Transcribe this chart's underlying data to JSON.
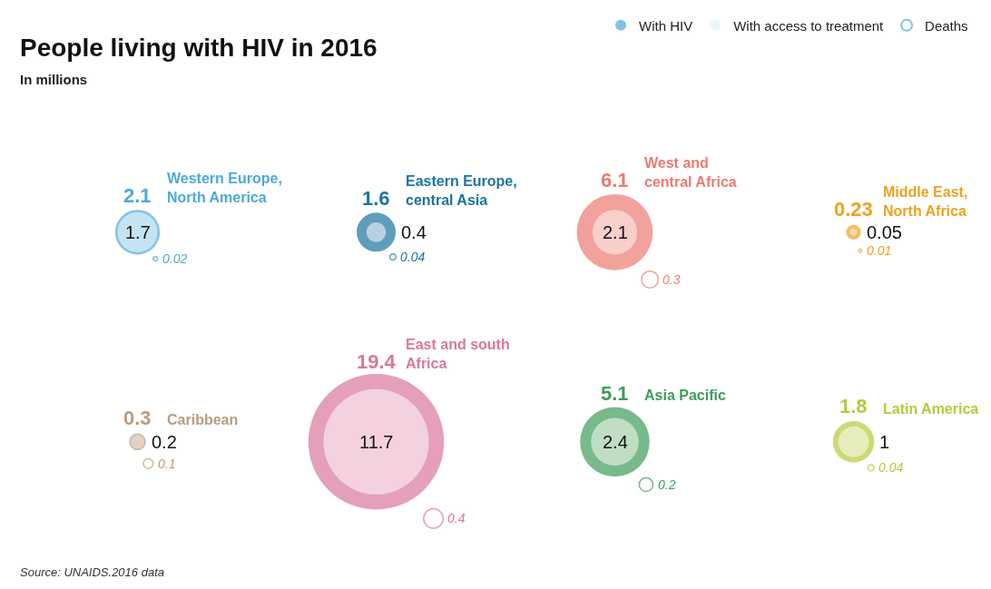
{
  "chart_data": {
    "type": "other",
    "title": "People living with HIV in 2016",
    "subtitle": "In millions",
    "categories": [
      "Western Europe, North America",
      "Eastern Europe, central Asia",
      "West and central Africa",
      "Middle East, North Africa",
      "Caribbean",
      "East and south Africa",
      "Asia Pacific",
      "Latin America"
    ],
    "series": [
      {
        "name": "With HIV",
        "colors": [
          "#4aabd6",
          "#1a74a0",
          "#ec7b72",
          "#eea21f",
          "#b89c80",
          "#d9779d",
          "#3f9c5a",
          "#b8c93a"
        ],
        "values": [
          2.1,
          1.6,
          6.1,
          0.23,
          0.3,
          19.4,
          5.1,
          1.8
        ]
      },
      {
        "name": "With access to treatment",
        "colors": [
          "#e3f2fa",
          "#dfe6ee",
          "#fbe3df",
          "#fbe9c9",
          "#e8ddd3",
          "#fbe5ef",
          "#deeedd",
          "#f1f5d8"
        ],
        "values": [
          1.7,
          0.4,
          2.1,
          0.05,
          0.2,
          11.7,
          2.4,
          1
        ]
      },
      {
        "name": "Deaths",
        "colors": [
          "#4aabd6",
          "#1a74a0",
          "#ec7b72",
          "#eea21f",
          "#b89c80",
          "#d9779d",
          "#3f9c5a",
          "#b8c93a"
        ],
        "values": [
          0.02,
          0.04,
          0.3,
          0.01,
          0.1,
          0.4,
          0.2,
          0.04
        ]
      }
    ],
    "data_labels": true,
    "legend": "top",
    "annotations": [
      "Source: UNAIDS.2016 data"
    ]
  }
}
